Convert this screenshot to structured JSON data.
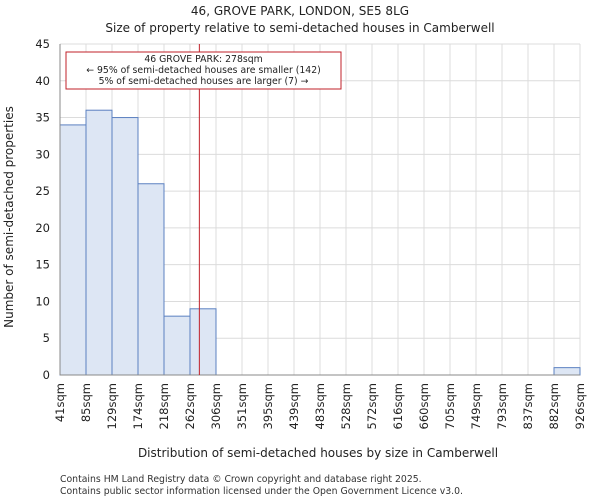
{
  "chart_data": {
    "type": "bar",
    "title": "46, GROVE PARK, LONDON, SE5 8LG",
    "subtitle": "Size of property relative to semi-detached houses in Camberwell",
    "xlabel": "Distribution of semi-detached houses by size in Camberwell",
    "ylabel": "Number of semi-detached properties",
    "ylim": [
      0,
      45
    ],
    "yticks": [
      0,
      5,
      10,
      15,
      20,
      25,
      30,
      35,
      40,
      45
    ],
    "grid": true,
    "bin_edges": [
      "41sqm",
      "85sqm",
      "129sqm",
      "174sqm",
      "218sqm",
      "262sqm",
      "306sqm",
      "351sqm",
      "395sqm",
      "439sqm",
      "483sqm",
      "528sqm",
      "572sqm",
      "616sqm",
      "660sqm",
      "705sqm",
      "749sqm",
      "793sqm",
      "837sqm",
      "882sqm",
      "926sqm"
    ],
    "values": [
      34,
      36,
      35,
      26,
      8,
      9,
      0,
      0,
      0,
      0,
      0,
      0,
      0,
      0,
      0,
      0,
      0,
      0,
      0,
      1
    ],
    "marker": {
      "value_bin_position": 5.36,
      "label": "46 GROVE PARK: 278sqm",
      "color": "#c0202a"
    },
    "annotation_lines": [
      "46 GROVE PARK: 278sqm",
      "← 95% of semi-detached houses are smaller (142)",
      "5% of semi-detached houses are larger (7) →"
    ],
    "colors": {
      "bar_fill": "#dde6f4",
      "bar_edge": "#5b80c1",
      "marker": "#c0202a"
    }
  },
  "footer": {
    "line1": "Contains HM Land Registry data © Crown copyright and database right 2025.",
    "line2": "Contains public sector information licensed under the Open Government Licence v3.0."
  }
}
